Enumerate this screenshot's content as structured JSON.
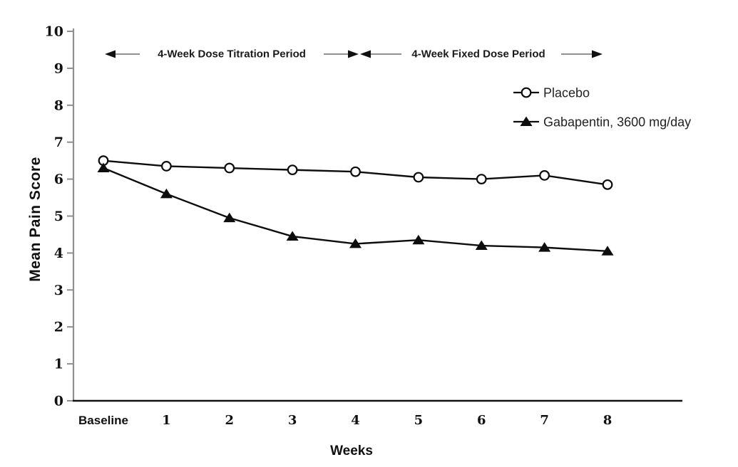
{
  "chart_data": {
    "type": "line",
    "title": "",
    "xlabel": "Weeks",
    "ylabel": "Mean Pain Score",
    "categories": [
      "Baseline",
      "1",
      "2",
      "3",
      "4",
      "5",
      "6",
      "7",
      "8"
    ],
    "y_ticks": [
      "0",
      "1",
      "2",
      "3",
      "4",
      "5",
      "6",
      "7",
      "8",
      "9",
      "10"
    ],
    "ylim": [
      0,
      10
    ],
    "grid": false,
    "legend_position": "upper-right",
    "series": [
      {
        "name": "Placebo",
        "marker": "open-circle",
        "color": "#0d0d0d",
        "values": [
          6.5,
          6.35,
          6.3,
          6.25,
          6.2,
          6.05,
          6.0,
          6.1,
          5.85
        ]
      },
      {
        "name": "Gabapentin, 3600 mg/day",
        "marker": "filled-triangle",
        "color": "#0d0d0d",
        "values": [
          6.3,
          5.6,
          4.95,
          4.45,
          4.25,
          4.35,
          4.2,
          4.15,
          4.05
        ]
      }
    ],
    "annotations": [
      {
        "label": "4-Week Dose Titration Period",
        "x_start": "Baseline",
        "x_end": "4"
      },
      {
        "label": "4-Week Fixed Dose Period",
        "x_start": "4",
        "x_end": "8"
      }
    ]
  },
  "colors": {
    "background": "#ffffff",
    "data": "#0d0d0d",
    "y_axis": "#8f8f8f",
    "x_axis": "#111111",
    "arrow_shaft": "#909090",
    "arrow_head": "#111111"
  }
}
